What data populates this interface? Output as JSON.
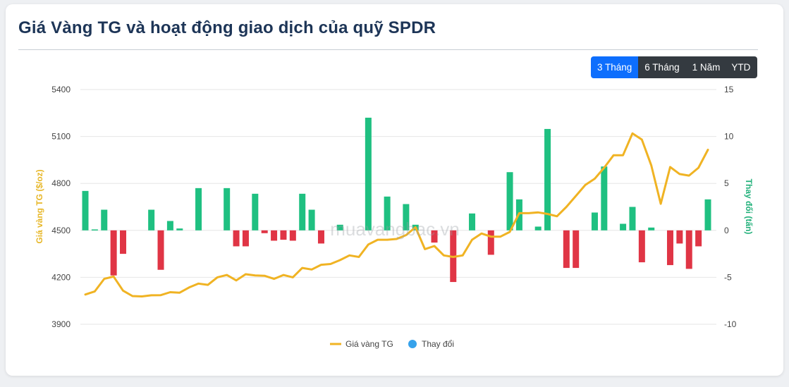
{
  "header": {
    "title": "Giá Vàng TG và hoạt động giao dịch của quỹ SPDR"
  },
  "range_buttons": [
    {
      "label": "3 Tháng",
      "active": true
    },
    {
      "label": "6 Tháng",
      "active": false
    },
    {
      "label": "1 Năm",
      "active": false
    },
    {
      "label": "YTD",
      "active": false
    }
  ],
  "watermark": "muavangbac.vn",
  "colors": {
    "gold_line": "#f0b323",
    "positive_bar": "#1fc081",
    "negative_bar": "#e03545",
    "legend_change_dot": "#36a2eb",
    "active_button": "#0d6efd",
    "title": "#1d3557"
  },
  "chart_data": {
    "type": "bar+line",
    "title": "Giá Vàng TG và hoạt động giao dịch của quỹ SPDR",
    "grid": true,
    "legend_position": "bottom",
    "y_left": {
      "label": "Giá vàng TG ($/oz)",
      "range": [
        3900,
        5400
      ],
      "ticks": [
        5400,
        5100,
        4800,
        4500,
        4200,
        3900
      ]
    },
    "y_right": {
      "label": "Thay đổi (tấn)",
      "range": [
        -10,
        15
      ],
      "ticks": [
        15,
        10,
        5,
        0,
        -5,
        -10
      ]
    },
    "series": [
      {
        "name": "Giá vàng TG",
        "type": "line",
        "axis": "left",
        "values": [
          4090,
          4110,
          4190,
          4205,
          4115,
          4080,
          4078,
          4085,
          4086,
          4105,
          4102,
          4135,
          4160,
          4152,
          4200,
          4215,
          4180,
          4220,
          4212,
          4210,
          4190,
          4215,
          4200,
          4260,
          4250,
          4280,
          4285,
          4310,
          4340,
          4330,
          4410,
          4440,
          4440,
          4445,
          4470,
          4520,
          4380,
          4400,
          4340,
          4330,
          4340,
          4440,
          4480,
          4460,
          4460,
          4490,
          4610,
          4610,
          4615,
          4605,
          4590,
          4650,
          4720,
          4790,
          4830,
          4900,
          4980,
          4980,
          5120,
          5080,
          4915,
          4670,
          4905,
          4860,
          4850,
          4900,
          5015
        ]
      },
      {
        "name": "Thay đổi",
        "type": "bar",
        "axis": "right",
        "values": [
          4.2,
          0.1,
          2.2,
          -4.8,
          -2.5,
          0,
          0,
          2.2,
          -4.2,
          1.0,
          0.2,
          0,
          4.5,
          0,
          0,
          4.5,
          -1.7,
          -1.7,
          3.9,
          -0.3,
          -1.1,
          -1.0,
          -1.1,
          3.9,
          2.2,
          -1.4,
          0,
          0.6,
          0,
          0,
          12.0,
          0,
          3.6,
          0,
          2.8,
          0.6,
          0,
          -1.3,
          0,
          -5.5,
          0,
          1.8,
          0,
          -2.6,
          0,
          6.2,
          3.3,
          0,
          0.4,
          10.8,
          0,
          -4.0,
          -4.0,
          0,
          1.9,
          6.8,
          0,
          0.7,
          2.5,
          -3.4,
          0.3,
          0,
          -3.7,
          -1.4,
          -4.1,
          -1.7,
          3.3
        ]
      }
    ]
  },
  "legend": [
    {
      "label": "Giá vàng TG"
    },
    {
      "label": "Thay đổi"
    }
  ]
}
